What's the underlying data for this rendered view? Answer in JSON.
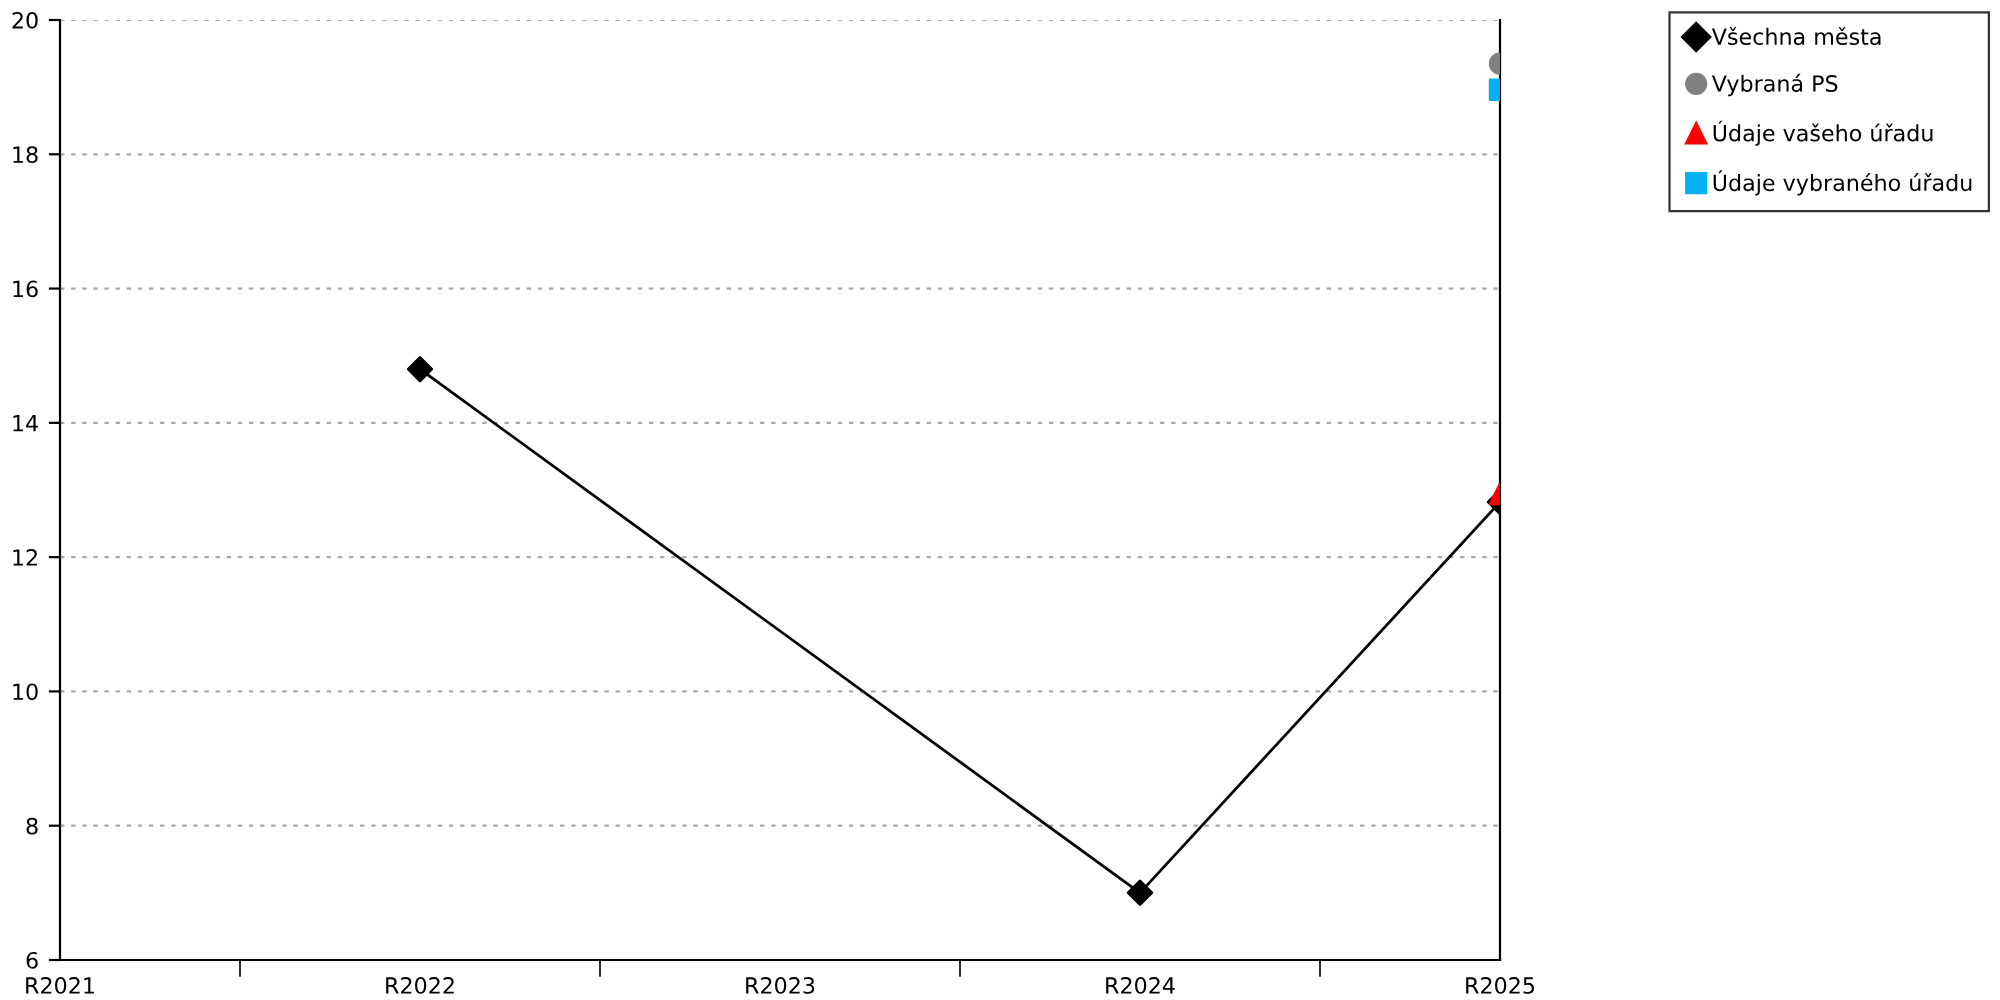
{
  "chart_data": {
    "type": "line",
    "categories": [
      "R2021",
      "R2022",
      "R2023",
      "R2024",
      "R2025"
    ],
    "series": [
      {
        "name": "Všechna města",
        "color": "#000000",
        "marker": "diamond",
        "values": [
          null,
          14.8,
          null,
          7.0,
          12.82
        ]
      },
      {
        "name": "Vybraná PS",
        "color": "#808080",
        "marker": "circle",
        "type": "scatter",
        "values": [
          null,
          null,
          null,
          null,
          19.35
        ]
      },
      {
        "name": "Údaje vašeho úřadu",
        "color": "#ff0000",
        "marker": "triangle",
        "type": "scatter",
        "values": [
          null,
          null,
          null,
          null,
          12.94
        ]
      },
      {
        "name": "Údaje vybraného úřadu",
        "color": "#00b0f0",
        "marker": "square",
        "type": "scatter",
        "values": [
          null,
          null,
          null,
          null,
          18.96
        ]
      }
    ],
    "ylim": [
      6,
      20
    ],
    "yticks": [
      6,
      8,
      10,
      12,
      14,
      16,
      18,
      20
    ],
    "grid": "y",
    "legend": "top right"
  }
}
